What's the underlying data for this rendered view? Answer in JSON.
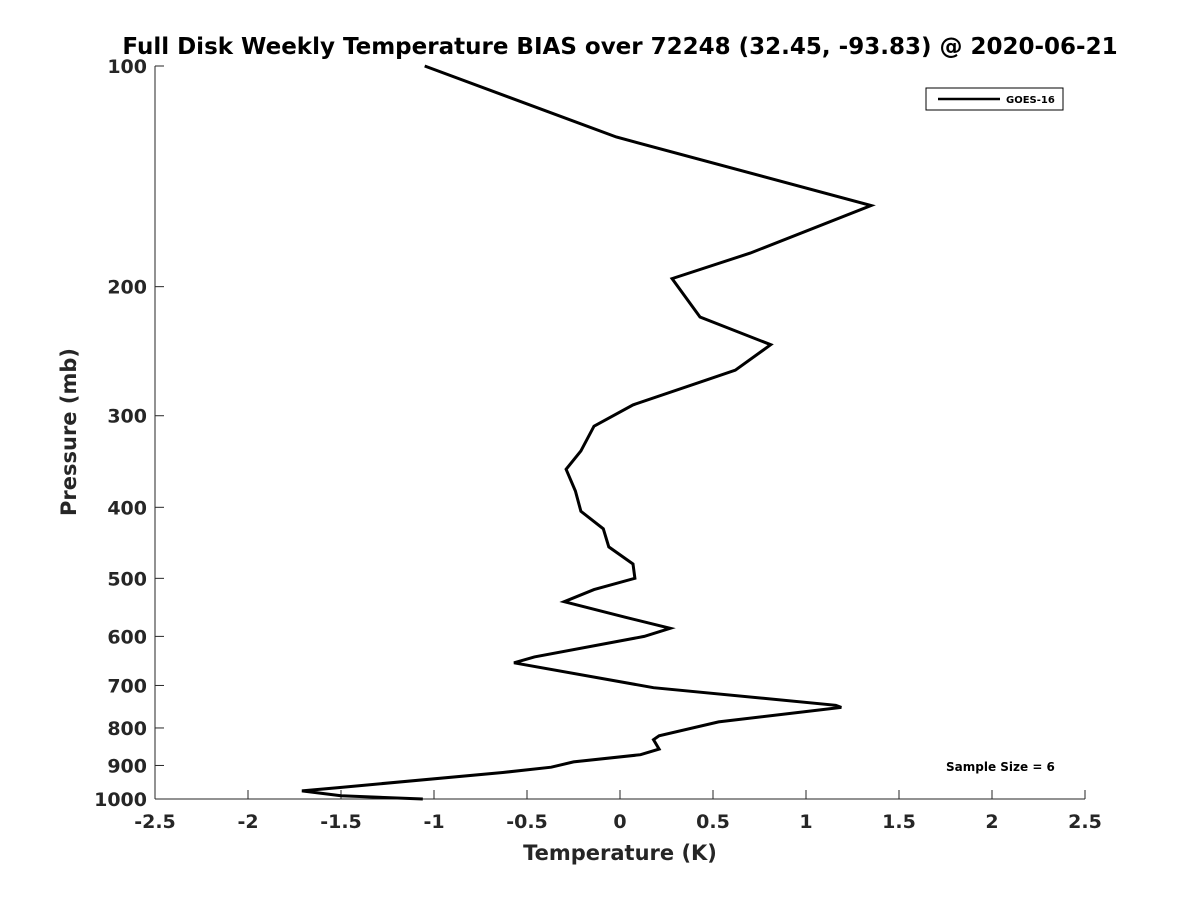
{
  "chart_data": {
    "type": "line",
    "title": "Full Disk Weekly Temperature BIAS over 72248 (32.45, -93.83) @ 2020-06-21",
    "xlabel": "Temperature (K)",
    "ylabel": "Pressure (mb)",
    "xlim": [
      -2.5,
      2.5
    ],
    "ylim": [
      1000,
      100
    ],
    "yscale": "log",
    "y_reversed": true,
    "grid": false,
    "x_ticks": [
      -2.5,
      -2,
      -1.5,
      -1,
      -0.5,
      0,
      0.5,
      1,
      1.5,
      2,
      2.5
    ],
    "x_tick_labels": [
      "-2.5",
      "-2",
      "-1.5",
      "-1",
      "-0.5",
      "0",
      "0.5",
      "1",
      "1.5",
      "2",
      "2.5"
    ],
    "y_ticks": [
      100,
      200,
      300,
      400,
      500,
      600,
      700,
      800,
      900,
      1000
    ],
    "y_tick_labels": [
      "100",
      "200",
      "300",
      "400",
      "500",
      "600",
      "700",
      "800",
      "900",
      "1000"
    ],
    "legend": {
      "location": "top-right",
      "entries": [
        "GOES-16"
      ]
    },
    "annotation": "Sample Size = 6",
    "series": [
      {
        "name": "GOES-16",
        "color": "#000000",
        "points": [
          [
            -1.05,
            100
          ],
          [
            -0.02,
            125
          ],
          [
            1.35,
            155
          ],
          [
            0.7,
            180
          ],
          [
            0.28,
            195
          ],
          [
            0.43,
            220
          ],
          [
            0.81,
            240
          ],
          [
            0.62,
            260
          ],
          [
            0.07,
            290
          ],
          [
            -0.14,
            310
          ],
          [
            -0.21,
            335
          ],
          [
            -0.29,
            355
          ],
          [
            -0.24,
            380
          ],
          [
            -0.21,
            405
          ],
          [
            -0.09,
            428
          ],
          [
            -0.06,
            453
          ],
          [
            0.07,
            478
          ],
          [
            0.08,
            500
          ],
          [
            -0.14,
            518
          ],
          [
            -0.3,
            538
          ],
          [
            0.03,
            565
          ],
          [
            0.27,
            585
          ],
          [
            0.13,
            600
          ],
          [
            -0.46,
            640
          ],
          [
            -0.57,
            652
          ],
          [
            0.18,
            705
          ],
          [
            1.16,
            745
          ],
          [
            1.19,
            750
          ],
          [
            0.53,
            785
          ],
          [
            0.21,
            820
          ],
          [
            0.18,
            830
          ],
          [
            0.21,
            855
          ],
          [
            0.11,
            870
          ],
          [
            -0.25,
            890
          ],
          [
            -0.37,
            905
          ],
          [
            -0.63,
            920
          ],
          [
            -1.52,
            965
          ],
          [
            -1.71,
            975
          ],
          [
            -1.5,
            990
          ],
          [
            -1.06,
            1000
          ]
        ]
      }
    ]
  }
}
